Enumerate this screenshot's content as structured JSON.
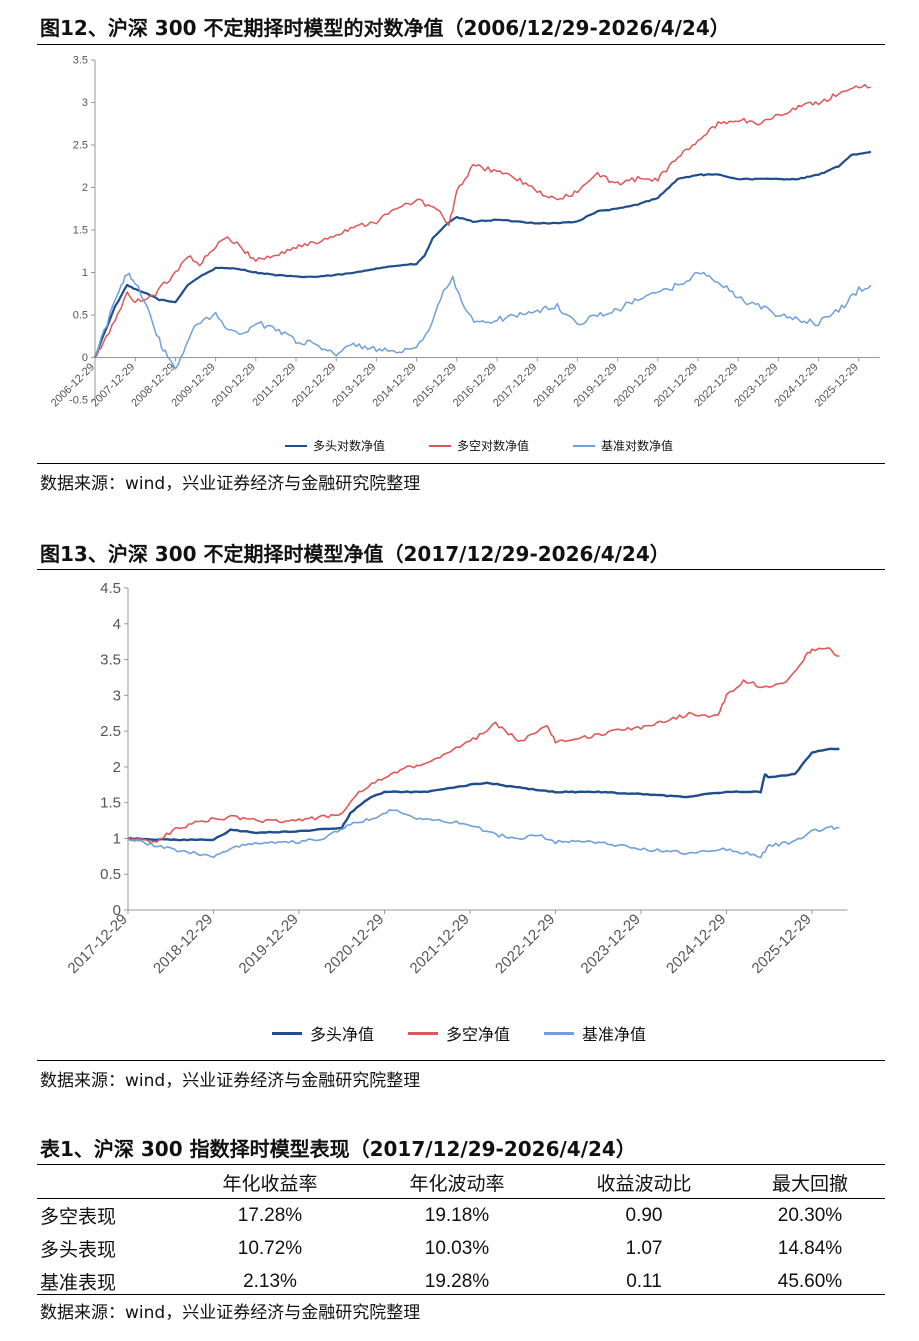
{
  "fig12": {
    "title": "图12、沪深 300 不定期择时模型的对数净值（2006/12/29-2026/4/24）",
    "source": "数据来源：wind，兴业证券经济与金融研究院整理",
    "legend": [
      {
        "label": "多头对数净值",
        "color": "#1f4e8c"
      },
      {
        "label": "多空对数净值",
        "color": "#e05757"
      },
      {
        "label": "基准对数净值",
        "color": "#6fa0dc"
      }
    ]
  },
  "fig13": {
    "title": "图13、沪深 300 不定期择时模型净值（2017/12/29-2026/4/24）",
    "source": "数据来源：wind，兴业证券经济与金融研究院整理",
    "legend": [
      {
        "label": "多头净值",
        "color": "#1f4e8c"
      },
      {
        "label": "多空净值",
        "color": "#e05757"
      },
      {
        "label": "基准净值",
        "color": "#6fa0dc"
      }
    ]
  },
  "table1": {
    "title": "表1、沪深 300 指数择时模型表现（2017/12/29-2026/4/24）",
    "headers": [
      "",
      "年化收益率",
      "年化波动率",
      "收益波动比",
      "最大回撤"
    ],
    "rows": [
      [
        "多空表现",
        "17.28%",
        "19.18%",
        "0.90",
        "20.30%"
      ],
      [
        "多头表现",
        "10.72%",
        "10.03%",
        "1.07",
        "14.84%"
      ],
      [
        "基准表现",
        "2.13%",
        "19.28%",
        "0.11",
        "45.60%"
      ]
    ],
    "source": "数据来源：wind，兴业证券经济与金融研究院整理"
  },
  "chart_data": [
    {
      "type": "line",
      "title": "图12、沪深 300 不定期择时模型的对数净值（2006/12/29-2026/4/24）",
      "ylim": [
        -0.5,
        3.5
      ],
      "yticks": [
        "3.5",
        "3",
        "2.5",
        "2",
        "1.5",
        "1",
        "0.5",
        "0",
        "-0.5"
      ],
      "categories": [
        "2006-12-29",
        "2007-12-29",
        "2008-12-29",
        "2009-12-29",
        "2010-12-29",
        "2011-12-29",
        "2012-12-29",
        "2013-12-29",
        "2014-12-29",
        "2015-12-29",
        "2016-12-29",
        "2017-12-29",
        "2018-12-29",
        "2019-12-29",
        "2020-12-29",
        "2021-12-29",
        "2022-12-29",
        "2023-12-29",
        "2024-12-29",
        "2025-12-29"
      ],
      "x_end": 19.32,
      "series": [
        {
          "name": "多头对数净值",
          "color": "#1f4e8c",
          "points": [
            [
              0,
              0
            ],
            [
              0.2,
              0.25
            ],
            [
              0.5,
              0.6
            ],
            [
              0.8,
              0.85
            ],
            [
              1.0,
              0.8
            ],
            [
              1.3,
              0.75
            ],
            [
              1.6,
              0.68
            ],
            [
              2.0,
              0.65
            ],
            [
              2.3,
              0.85
            ],
            [
              2.6,
              0.95
            ],
            [
              3.0,
              1.05
            ],
            [
              3.5,
              1.05
            ],
            [
              4.0,
              1.0
            ],
            [
              4.5,
              0.97
            ],
            [
              5.0,
              0.95
            ],
            [
              5.5,
              0.95
            ],
            [
              6.0,
              0.97
            ],
            [
              6.5,
              1.0
            ],
            [
              7.0,
              1.05
            ],
            [
              7.5,
              1.08
            ],
            [
              8.0,
              1.1
            ],
            [
              8.2,
              1.2
            ],
            [
              8.4,
              1.4
            ],
            [
              8.7,
              1.55
            ],
            [
              9.0,
              1.65
            ],
            [
              9.4,
              1.6
            ],
            [
              10.0,
              1.62
            ],
            [
              10.5,
              1.6
            ],
            [
              11.0,
              1.58
            ],
            [
              11.5,
              1.58
            ],
            [
              12.0,
              1.6
            ],
            [
              12.5,
              1.72
            ],
            [
              13.0,
              1.75
            ],
            [
              13.5,
              1.8
            ],
            [
              14.0,
              1.88
            ],
            [
              14.5,
              2.1
            ],
            [
              15.0,
              2.15
            ],
            [
              15.5,
              2.15
            ],
            [
              16.0,
              2.1
            ],
            [
              16.5,
              2.1
            ],
            [
              17.0,
              2.1
            ],
            [
              17.5,
              2.1
            ],
            [
              18.0,
              2.15
            ],
            [
              18.5,
              2.25
            ],
            [
              18.8,
              2.38
            ],
            [
              19.3,
              2.42
            ]
          ]
        },
        {
          "name": "多空对数净值",
          "color": "#e05757",
          "points": [
            [
              0,
              0
            ],
            [
              0.2,
              0.15
            ],
            [
              0.5,
              0.45
            ],
            [
              0.8,
              0.75
            ],
            [
              1.0,
              0.65
            ],
            [
              1.5,
              0.75
            ],
            [
              2.0,
              1.0
            ],
            [
              2.3,
              1.2
            ],
            [
              2.6,
              1.1
            ],
            [
              3.0,
              1.3
            ],
            [
              3.3,
              1.42
            ],
            [
              3.6,
              1.3
            ],
            [
              4.0,
              1.15
            ],
            [
              4.5,
              1.2
            ],
            [
              5.0,
              1.3
            ],
            [
              5.5,
              1.35
            ],
            [
              6.0,
              1.45
            ],
            [
              6.5,
              1.55
            ],
            [
              7.0,
              1.6
            ],
            [
              7.5,
              1.75
            ],
            [
              8.0,
              1.85
            ],
            [
              8.5,
              1.75
            ],
            [
              8.8,
              1.55
            ],
            [
              9.0,
              1.95
            ],
            [
              9.4,
              2.25
            ],
            [
              10.0,
              2.2
            ],
            [
              10.5,
              2.1
            ],
            [
              11.0,
              1.95
            ],
            [
              11.5,
              1.85
            ],
            [
              12.0,
              1.95
            ],
            [
              12.5,
              2.15
            ],
            [
              13.0,
              2.05
            ],
            [
              13.5,
              2.1
            ],
            [
              14.0,
              2.1
            ],
            [
              14.5,
              2.35
            ],
            [
              15.0,
              2.55
            ],
            [
              15.5,
              2.75
            ],
            [
              16.0,
              2.8
            ],
            [
              16.5,
              2.75
            ],
            [
              17.0,
              2.85
            ],
            [
              17.5,
              2.95
            ],
            [
              18.0,
              3.0
            ],
            [
              18.5,
              3.1
            ],
            [
              19.0,
              3.2
            ],
            [
              19.3,
              3.18
            ]
          ]
        },
        {
          "name": "基准对数净值",
          "color": "#6fa0dc",
          "points": [
            [
              0,
              0
            ],
            [
              0.3,
              0.4
            ],
            [
              0.6,
              0.8
            ],
            [
              0.8,
              1.0
            ],
            [
              1.0,
              0.9
            ],
            [
              1.3,
              0.6
            ],
            [
              1.6,
              0.2
            ],
            [
              1.8,
              0.0
            ],
            [
              2.0,
              -0.15
            ],
            [
              2.4,
              0.3
            ],
            [
              2.7,
              0.45
            ],
            [
              3.0,
              0.5
            ],
            [
              3.3,
              0.35
            ],
            [
              3.6,
              0.25
            ],
            [
              4.0,
              0.4
            ],
            [
              4.5,
              0.35
            ],
            [
              5.0,
              0.2
            ],
            [
              5.5,
              0.15
            ],
            [
              6.0,
              0.05
            ],
            [
              6.5,
              0.15
            ],
            [
              7.0,
              0.1
            ],
            [
              7.5,
              0.05
            ],
            [
              8.0,
              0.1
            ],
            [
              8.3,
              0.3
            ],
            [
              8.6,
              0.7
            ],
            [
              8.9,
              0.95
            ],
            [
              9.2,
              0.55
            ],
            [
              9.5,
              0.4
            ],
            [
              10.0,
              0.45
            ],
            [
              10.5,
              0.5
            ],
            [
              11.0,
              0.55
            ],
            [
              11.5,
              0.6
            ],
            [
              12.0,
              0.4
            ],
            [
              12.5,
              0.5
            ],
            [
              13.0,
              0.55
            ],
            [
              13.5,
              0.7
            ],
            [
              14.0,
              0.75
            ],
            [
              14.5,
              0.85
            ],
            [
              15.0,
              1.0
            ],
            [
              15.5,
              0.9
            ],
            [
              16.0,
              0.7
            ],
            [
              16.5,
              0.6
            ],
            [
              17.0,
              0.5
            ],
            [
              17.5,
              0.45
            ],
            [
              18.0,
              0.4
            ],
            [
              18.5,
              0.55
            ],
            [
              19.0,
              0.8
            ],
            [
              19.3,
              0.85
            ]
          ]
        }
      ]
    },
    {
      "type": "line",
      "title": "图13、沪深 300 不定期择时模型净值（2017/12/29-2026/4/24）",
      "ylim": [
        0,
        4.5
      ],
      "yticks": [
        "4.5",
        "4",
        "3.5",
        "3",
        "2.5",
        "2",
        "1.5",
        "1",
        "0.5",
        "0"
      ],
      "categories": [
        "2017-12-29",
        "2018-12-29",
        "2019-12-29",
        "2020-12-29",
        "2021-12-29",
        "2022-12-29",
        "2023-12-29",
        "2024-12-29",
        "2025-12-29"
      ],
      "x_end": 8.32,
      "series": [
        {
          "name": "多头净值",
          "color": "#1f4e8c",
          "points": [
            [
              0,
              1.0
            ],
            [
              0.5,
              0.98
            ],
            [
              1.0,
              0.98
            ],
            [
              1.2,
              1.12
            ],
            [
              1.5,
              1.08
            ],
            [
              2.0,
              1.1
            ],
            [
              2.5,
              1.15
            ],
            [
              2.6,
              1.35
            ],
            [
              2.8,
              1.55
            ],
            [
              3.0,
              1.65
            ],
            [
              3.5,
              1.65
            ],
            [
              4.0,
              1.75
            ],
            [
              4.2,
              1.78
            ],
            [
              4.5,
              1.72
            ],
            [
              5.0,
              1.65
            ],
            [
              5.5,
              1.65
            ],
            [
              6.0,
              1.62
            ],
            [
              6.5,
              1.58
            ],
            [
              7.0,
              1.65
            ],
            [
              7.4,
              1.65
            ],
            [
              7.45,
              1.9
            ],
            [
              7.5,
              1.85
            ],
            [
              7.8,
              1.9
            ],
            [
              8.0,
              2.2
            ],
            [
              8.2,
              2.25
            ],
            [
              8.32,
              2.25
            ]
          ]
        },
        {
          "name": "多空净值",
          "color": "#e05757",
          "points": [
            [
              0,
              1.0
            ],
            [
              0.3,
              0.95
            ],
            [
              0.6,
              1.15
            ],
            [
              0.9,
              1.25
            ],
            [
              1.2,
              1.3
            ],
            [
              1.5,
              1.25
            ],
            [
              2.0,
              1.25
            ],
            [
              2.3,
              1.3
            ],
            [
              2.5,
              1.35
            ],
            [
              2.7,
              1.65
            ],
            [
              3.0,
              1.85
            ],
            [
              3.3,
              2.0
            ],
            [
              3.5,
              2.05
            ],
            [
              3.8,
              2.25
            ],
            [
              4.0,
              2.35
            ],
            [
              4.3,
              2.6
            ],
            [
              4.6,
              2.35
            ],
            [
              4.9,
              2.6
            ],
            [
              5.0,
              2.35
            ],
            [
              5.3,
              2.4
            ],
            [
              5.7,
              2.5
            ],
            [
              6.0,
              2.55
            ],
            [
              6.3,
              2.65
            ],
            [
              6.6,
              2.75
            ],
            [
              6.9,
              2.7
            ],
            [
              7.0,
              3.0
            ],
            [
              7.2,
              3.2
            ],
            [
              7.5,
              3.1
            ],
            [
              7.7,
              3.2
            ],
            [
              7.9,
              3.5
            ],
            [
              8.0,
              3.65
            ],
            [
              8.2,
              3.65
            ],
            [
              8.32,
              3.55
            ]
          ]
        },
        {
          "name": "基准净值",
          "color": "#6fa0dc",
          "points": [
            [
              0,
              1.0
            ],
            [
              0.5,
              0.85
            ],
            [
              1.0,
              0.75
            ],
            [
              1.3,
              0.9
            ],
            [
              1.6,
              0.95
            ],
            [
              2.0,
              0.95
            ],
            [
              2.3,
              1.0
            ],
            [
              2.6,
              1.2
            ],
            [
              2.9,
              1.3
            ],
            [
              3.1,
              1.4
            ],
            [
              3.3,
              1.3
            ],
            [
              3.6,
              1.25
            ],
            [
              4.0,
              1.2
            ],
            [
              4.3,
              1.05
            ],
            [
              4.6,
              1.0
            ],
            [
              4.8,
              1.05
            ],
            [
              5.0,
              0.95
            ],
            [
              5.5,
              0.95
            ],
            [
              6.0,
              0.85
            ],
            [
              6.5,
              0.8
            ],
            [
              7.0,
              0.85
            ],
            [
              7.4,
              0.75
            ],
            [
              7.5,
              0.9
            ],
            [
              7.8,
              0.95
            ],
            [
              8.0,
              1.1
            ],
            [
              8.2,
              1.15
            ],
            [
              8.32,
              1.15
            ]
          ]
        }
      ]
    }
  ]
}
